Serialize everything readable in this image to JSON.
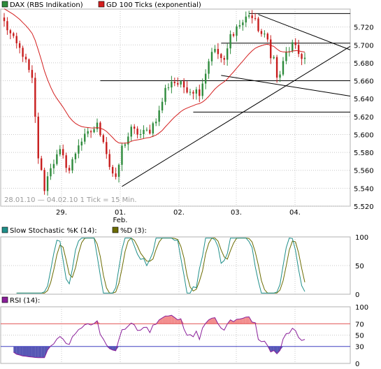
{
  "colors": {
    "up": "#2e8b3c",
    "down": "#c81e1e",
    "ma": "#d42020",
    "trend": "#000000",
    "stoch_k": "#1f8f8a",
    "stoch_d": "#6b6b00",
    "rsi": "#8a1f9a",
    "rsi_fill_high": "#f07a7a",
    "rsi_fill_low": "#3a3aa8",
    "grid": "#c8c8c8",
    "line70": "#e05050",
    "line30": "#4040c0"
  },
  "chart_data": [
    {
      "type": "candlestick",
      "legend": [
        {
          "name": "DAX (RBS Indikation)",
          "color": "#2e8b3c",
          "marker": "square"
        },
        {
          "name": "GD 100 Ticks (exponential)",
          "color": "#d42020",
          "marker": "square"
        }
      ],
      "ylim": [
        5520,
        5740
      ],
      "y_ticks": [
        "5.720",
        "5.700",
        "5.680",
        "5.660",
        "5.640",
        "5.620",
        "5.600",
        "5.580",
        "5.560",
        "5.540",
        "5.520"
      ],
      "x_ticks": [
        {
          "label": "29.",
          "sub": ""
        },
        {
          "label": "01.",
          "sub": "Feb."
        },
        {
          "label": "02.",
          "sub": ""
        },
        {
          "label": "03.",
          "sub": ""
        },
        {
          "label": "04.",
          "sub": ""
        }
      ],
      "footnote": "28.01.10 — 04.02.10  1 Tick = 15 Min.",
      "anchors": [
        [
          0,
          5725
        ],
        [
          3,
          5705
        ],
        [
          6,
          5690
        ],
        [
          9,
          5660
        ],
        [
          11,
          5575
        ],
        [
          13,
          5540
        ],
        [
          15,
          5565
        ],
        [
          18,
          5580
        ],
        [
          21,
          5560
        ],
        [
          24,
          5590
        ],
        [
          27,
          5600
        ],
        [
          30,
          5610
        ],
        [
          32,
          5595
        ],
        [
          34,
          5565
        ],
        [
          36,
          5548
        ],
        [
          38,
          5585
        ],
        [
          41,
          5605
        ],
        [
          44,
          5600
        ],
        [
          47,
          5605
        ],
        [
          50,
          5625
        ],
        [
          52,
          5650
        ],
        [
          54,
          5660
        ],
        [
          57,
          5655
        ],
        [
          60,
          5650
        ],
        [
          63,
          5648
        ],
        [
          65,
          5670
        ],
        [
          67,
          5695
        ],
        [
          69,
          5690
        ],
        [
          71,
          5680
        ],
        [
          73,
          5710
        ],
        [
          75,
          5720
        ],
        [
          77,
          5725
        ],
        [
          79,
          5735
        ],
        [
          81,
          5725
        ],
        [
          83,
          5712
        ],
        [
          85,
          5705
        ],
        [
          86,
          5690
        ],
        [
          87,
          5685
        ],
        [
          88,
          5662
        ],
        [
          89,
          5668
        ],
        [
          91,
          5690
        ],
        [
          93,
          5700
        ],
        [
          95,
          5690
        ],
        [
          97,
          5685
        ]
      ],
      "total_bars": 98,
      "horizontal_lines": [
        {
          "y": 5735,
          "from_bar": 79,
          "to_bar": 124
        },
        {
          "y": 5702,
          "from_bar": 70,
          "to_bar": 124
        },
        {
          "y": 5660,
          "from_bar": 31,
          "to_bar": 124
        },
        {
          "y": 5625,
          "from_bar": 61,
          "to_bar": 124
        }
      ],
      "trend_lines": [
        {
          "from": [
            38,
            5542
          ],
          "to": [
            111,
            5697
          ]
        },
        {
          "from": [
            82,
            5734
          ],
          "to": [
            115,
            5690
          ]
        },
        {
          "from": [
            70,
            5666
          ],
          "to": [
            115,
            5641
          ]
        }
      ]
    },
    {
      "type": "line",
      "legend": [
        {
          "name": "Slow Stochastic %K (14):",
          "color": "#1f8f8a",
          "marker": "square"
        },
        {
          "name": "%D (3):",
          "color": "#6b6b00",
          "marker": "square"
        }
      ],
      "ylim": [
        0,
        100
      ],
      "y_ticks": [
        "100",
        "50",
        "0"
      ]
    },
    {
      "type": "line",
      "legend": [
        {
          "name": "RSI (14):",
          "color": "#8a1f9a",
          "marker": "square"
        }
      ],
      "ylim": [
        0,
        100
      ],
      "y_ticks": [
        "100",
        "70",
        "50",
        "30",
        "0"
      ],
      "levels": [
        70,
        30
      ]
    }
  ]
}
